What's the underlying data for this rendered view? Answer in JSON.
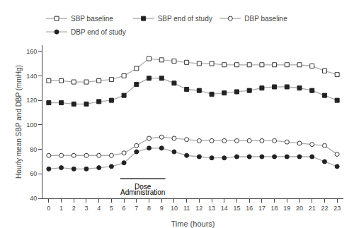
{
  "chart_data": {
    "type": "line",
    "xlabel": "Time (hours)",
    "ylabel": "Hourly mean SBP and DBP (mmHg)",
    "x": [
      0,
      1,
      2,
      3,
      4,
      5,
      6,
      7,
      8,
      9,
      10,
      11,
      12,
      13,
      14,
      15,
      16,
      17,
      18,
      19,
      20,
      21,
      22,
      23
    ],
    "series": [
      {
        "name": "SBP baseline",
        "color": "#aaaaaa",
        "marker": "square-open",
        "values": [
          136,
          136,
          135,
          135,
          136,
          137,
          140,
          146,
          154,
          153,
          152,
          151,
          150,
          150,
          149,
          149,
          149,
          149,
          149,
          149,
          149,
          148,
          144,
          141
        ]
      },
      {
        "name": "SBP end of study",
        "color": "#aaaaaa",
        "marker": "square",
        "values": [
          118,
          118,
          117,
          117,
          119,
          120,
          124,
          133,
          138,
          138,
          134,
          129,
          128,
          125,
          126,
          127,
          128,
          130,
          131,
          131,
          130,
          128,
          124,
          120
        ]
      },
      {
        "name": "DBP baseline",
        "color": "#aaaaaa",
        "marker": "circle-open",
        "values": [
          75,
          75,
          75,
          75,
          75,
          75,
          77,
          83,
          89,
          90,
          89,
          88,
          87,
          87,
          87,
          87,
          87,
          87,
          87,
          86,
          85,
          84,
          83,
          76
        ]
      },
      {
        "name": "DBP end of study",
        "color": "#aaaaaa",
        "marker": "circle",
        "values": [
          64,
          65,
          64,
          64,
          65,
          66,
          69,
          78,
          81,
          81,
          78,
          75,
          74,
          73,
          73,
          74,
          74,
          74,
          74,
          74,
          74,
          74,
          70,
          66
        ]
      }
    ],
    "xlim": [
      -0.5,
      23.5
    ],
    "xticks": [
      0,
      1,
      2,
      3,
      4,
      5,
      6,
      7,
      8,
      9,
      10,
      11,
      12,
      13,
      14,
      15,
      16,
      17,
      18,
      19,
      20,
      21,
      22,
      23
    ],
    "ylim": [
      40,
      165
    ],
    "yticks": [
      40,
      60,
      80,
      100,
      120,
      140,
      160
    ],
    "grid": false,
    "legend": "upper left",
    "annotations": [
      {
        "type": "line",
        "x": [
          5.7,
          9.3
        ],
        "y": [
          56,
          56
        ]
      },
      {
        "text": "Dose",
        "x": 7.5,
        "y": 54
      },
      {
        "text": "Administration",
        "x": 7.5,
        "y": 49
      }
    ]
  }
}
